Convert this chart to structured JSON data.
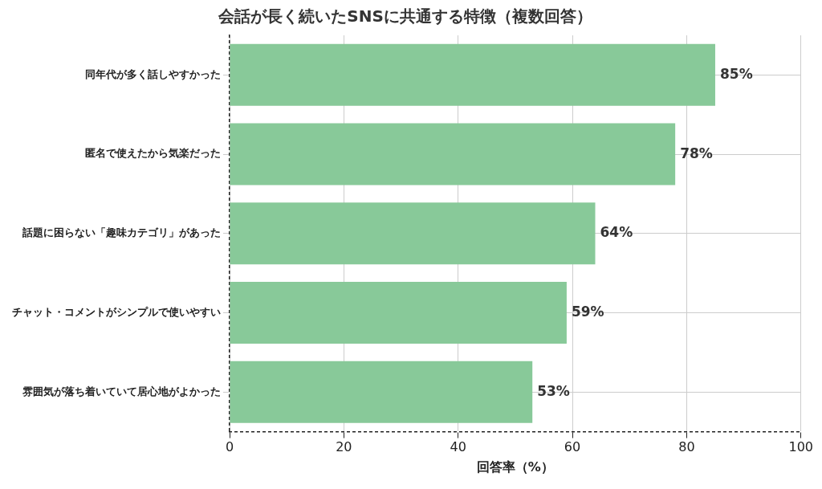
{
  "chart_data": {
    "type": "bar",
    "orientation": "horizontal",
    "title": "会話が長く続いたSNSに共通する特徴（複数回答）",
    "xlabel": "回答率（%）",
    "categories": [
      "同年代が多く話しやすかった",
      "匿名で使えたから気楽だった",
      "話題に困らない「趣味カテゴリ」があった",
      "チャット・コメントがシンプルで使いやすい",
      "雰囲気が落ち着いていて居心地がよかった"
    ],
    "values": [
      85,
      78,
      64,
      59,
      53
    ],
    "value_labels": [
      "85%",
      "78%",
      "64%",
      "59%",
      "53%"
    ],
    "color": "#88c999",
    "xlim": [
      0,
      100
    ],
    "xticks": [
      0,
      20,
      40,
      60,
      80,
      100
    ],
    "grid": true,
    "legend": false
  }
}
